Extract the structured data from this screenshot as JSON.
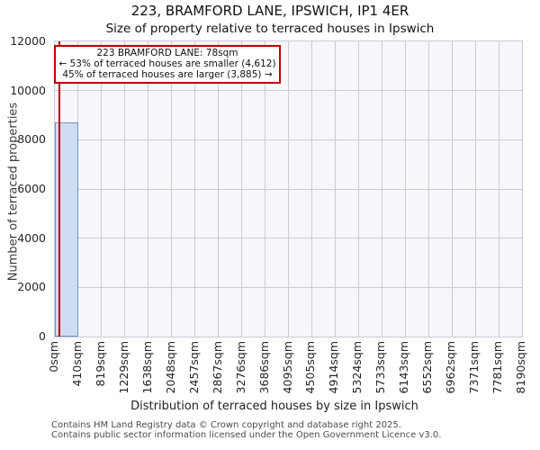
{
  "header": {
    "title": "223, BRAMFORD LANE, IPSWICH, IP1 4ER",
    "subtitle": "Size of property relative to terraced houses in Ipswich"
  },
  "axes": {
    "ylabel": "Number of terraced properties",
    "xlabel": "Distribution of terraced houses by size in Ipswich"
  },
  "annotation": {
    "line1": "223 BRAMFORD LANE: 78sqm",
    "line2": "← 53% of terraced houses are smaller (4,612)",
    "line3": "45% of terraced houses are larger (3,885) →"
  },
  "footer": {
    "line1": "Contains HM Land Registry data © Crown copyright and database right 2025.",
    "line2": "Contains public sector information licensed under the Open Government Licence v3.0."
  },
  "chart_data": {
    "type": "bar",
    "title": "223, BRAMFORD LANE, IPSWICH, IP1 4ER",
    "subtitle": "Size of property relative to terraced houses in Ipswich",
    "xlabel": "Distribution of terraced houses by size in Ipswich",
    "ylabel": "Number of terraced properties",
    "x_tick_labels": [
      "0sqm",
      "410sqm",
      "819sqm",
      "1229sqm",
      "1638sqm",
      "2048sqm",
      "2457sqm",
      "2867sqm",
      "3276sqm",
      "3686sqm",
      "4095sqm",
      "4505sqm",
      "4914sqm",
      "5324sqm",
      "5733sqm",
      "6143sqm",
      "6552sqm",
      "6962sqm",
      "7371sqm",
      "7781sqm",
      "8190sqm"
    ],
    "y_ticks": [
      0,
      2000,
      4000,
      6000,
      8000,
      10000,
      12000
    ],
    "ylim": [
      0,
      12000
    ],
    "xlim_sqm": [
      0,
      8190
    ],
    "num_bins": 20,
    "bin_width_sqm": 409.5,
    "bar_values": [
      8700,
      0,
      0,
      0,
      0,
      0,
      0,
      0,
      0,
      0,
      0,
      0,
      0,
      0,
      0,
      0,
      0,
      0,
      0,
      0
    ],
    "subject_property": {
      "label": "223 BRAMFORD LANE: 78sqm",
      "size_sqm": 78,
      "pct_smaller": 53,
      "count_smaller": "4,612",
      "pct_larger": 45,
      "count_larger": "3,885"
    },
    "grid": true,
    "legend": "none",
    "colors": {
      "bar_fill": "#d0dcf2",
      "bar_border": "#6d94c9",
      "marker_line": "#bb0000",
      "annotation_border": "#bb0000",
      "grid": "#cccccc",
      "plot_bg": "#f6f7fc",
      "plot_border": "#c6cad3"
    }
  }
}
